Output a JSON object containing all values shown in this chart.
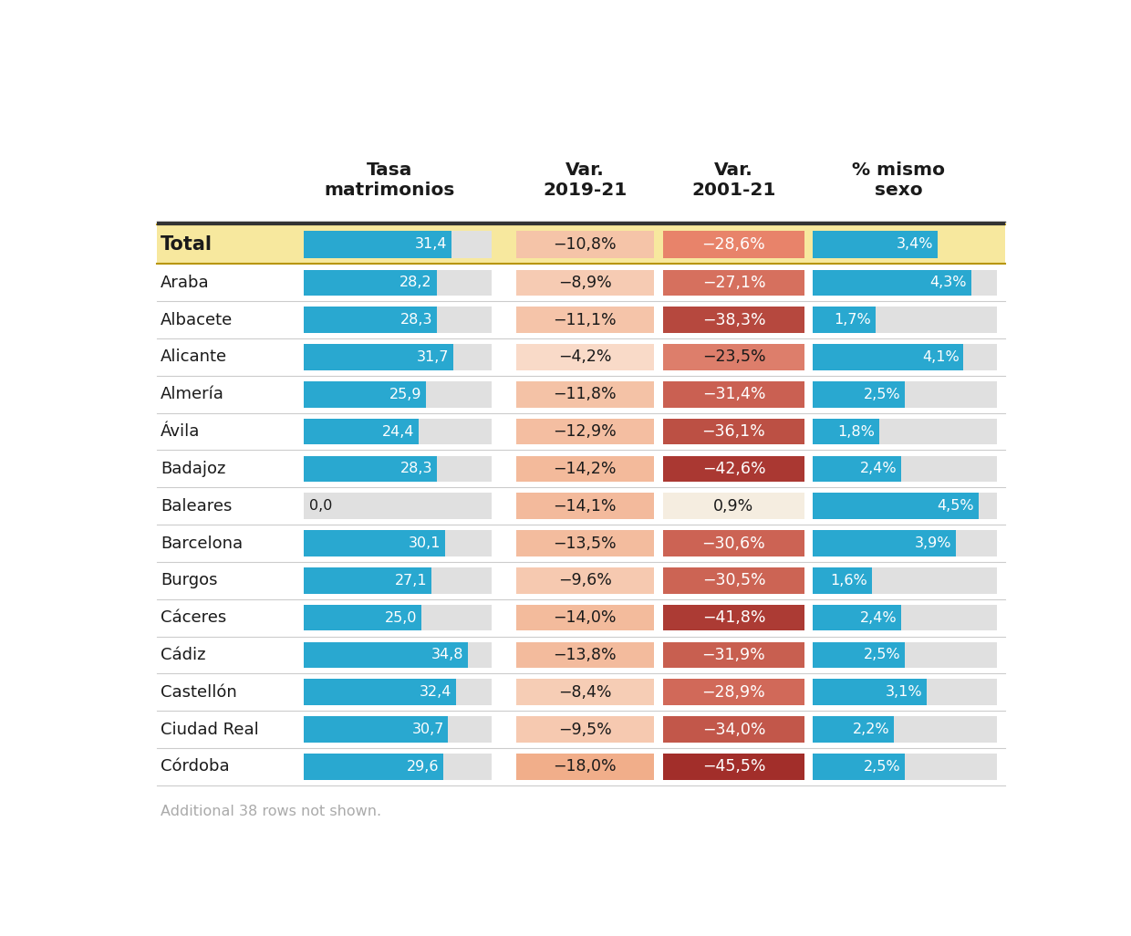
{
  "headers": [
    "Tasa\nmatrimonios",
    "Var.\n2019-21",
    "Var.\n2001-21",
    "% mismo\nsexo"
  ],
  "footer": "Additional 38 rows not shown.",
  "rows": [
    {
      "label": "Total",
      "tasa": 31.4,
      "var1921": -10.8,
      "var0121": -28.6,
      "pct": 3.4,
      "highlight": true
    },
    {
      "label": "Araba",
      "tasa": 28.2,
      "var1921": -8.9,
      "var0121": -27.1,
      "pct": 4.3,
      "highlight": false
    },
    {
      "label": "Albacete",
      "tasa": 28.3,
      "var1921": -11.1,
      "var0121": -38.3,
      "pct": 1.7,
      "highlight": false
    },
    {
      "label": "Alicante",
      "tasa": 31.7,
      "var1921": -4.2,
      "var0121": -23.5,
      "pct": 4.1,
      "highlight": false
    },
    {
      "label": "Almería",
      "tasa": 25.9,
      "var1921": -11.8,
      "var0121": -31.4,
      "pct": 2.5,
      "highlight": false
    },
    {
      "label": "Ávila",
      "tasa": 24.4,
      "var1921": -12.9,
      "var0121": -36.1,
      "pct": 1.8,
      "highlight": false
    },
    {
      "label": "Badajoz",
      "tasa": 28.3,
      "var1921": -14.2,
      "var0121": -42.6,
      "pct": 2.4,
      "highlight": false
    },
    {
      "label": "Baleares",
      "tasa": 0.0,
      "var1921": -14.1,
      "var0121": 0.9,
      "pct": 4.5,
      "highlight": false
    },
    {
      "label": "Barcelona",
      "tasa": 30.1,
      "var1921": -13.5,
      "var0121": -30.6,
      "pct": 3.9,
      "highlight": false
    },
    {
      "label": "Burgos",
      "tasa": 27.1,
      "var1921": -9.6,
      "var0121": -30.5,
      "pct": 1.6,
      "highlight": false
    },
    {
      "label": "Cáceres",
      "tasa": 25.0,
      "var1921": -14.0,
      "var0121": -41.8,
      "pct": 2.4,
      "highlight": false
    },
    {
      "label": "Cádiz",
      "tasa": 34.8,
      "var1921": -13.8,
      "var0121": -31.9,
      "pct": 2.5,
      "highlight": false
    },
    {
      "label": "Castellón",
      "tasa": 32.4,
      "var1921": -8.4,
      "var0121": -28.9,
      "pct": 3.1,
      "highlight": false
    },
    {
      "label": "Ciudad Real",
      "tasa": 30.7,
      "var1921": -9.5,
      "var0121": -34.0,
      "pct": 2.2,
      "highlight": false
    },
    {
      "label": "Córdoba",
      "tasa": 29.6,
      "var1921": -18.0,
      "var0121": -45.5,
      "pct": 2.5,
      "highlight": false
    }
  ],
  "tasa_max": 40.0,
  "pct_max": 5.0,
  "bar_blue": "#29a8d0",
  "highlight_bg": "#f7e89e",
  "text_dark": "#1a1a1a",
  "text_white": "#ffffff",
  "separator_color": "#cccccc",
  "thick_line_color": "#333333",
  "gray_bar_bg": "#e0e0e0"
}
